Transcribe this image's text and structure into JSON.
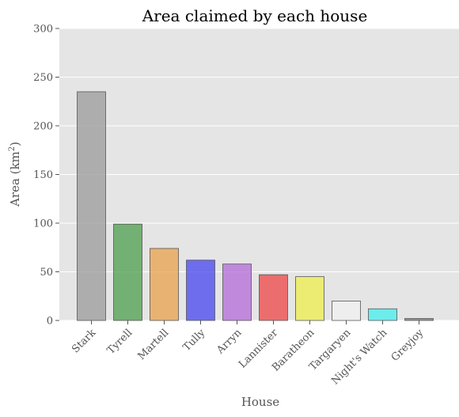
{
  "chart_data": {
    "type": "bar",
    "title": "Area claimed by each house",
    "xlabel": "House",
    "ylabel": "Area (km",
    "ylabel_sup": "2",
    "ylabel_close": ")",
    "ylim": [
      0,
      300
    ],
    "yticks": [
      0,
      50,
      100,
      150,
      200,
      250,
      300
    ],
    "grid": true,
    "categories": [
      "Stark",
      "Tyrell",
      "Martell",
      "Tully",
      "Arryn",
      "Lannister",
      "Baratheon",
      "Targaryen",
      "Night's Watch",
      "Greyjoy"
    ],
    "values": [
      235,
      99,
      74,
      62,
      58,
      47,
      45,
      20,
      12,
      2
    ],
    "colors": [
      "#999999",
      "#4c9e4c",
      "#e8a04b",
      "#4444f0",
      "#b36ad8",
      "#ee4444",
      "#eded4c",
      "#f0f0f0",
      "#44eeee",
      "#777777"
    ],
    "background": "#e5e5e5",
    "gridColor": "#ffffff"
  }
}
